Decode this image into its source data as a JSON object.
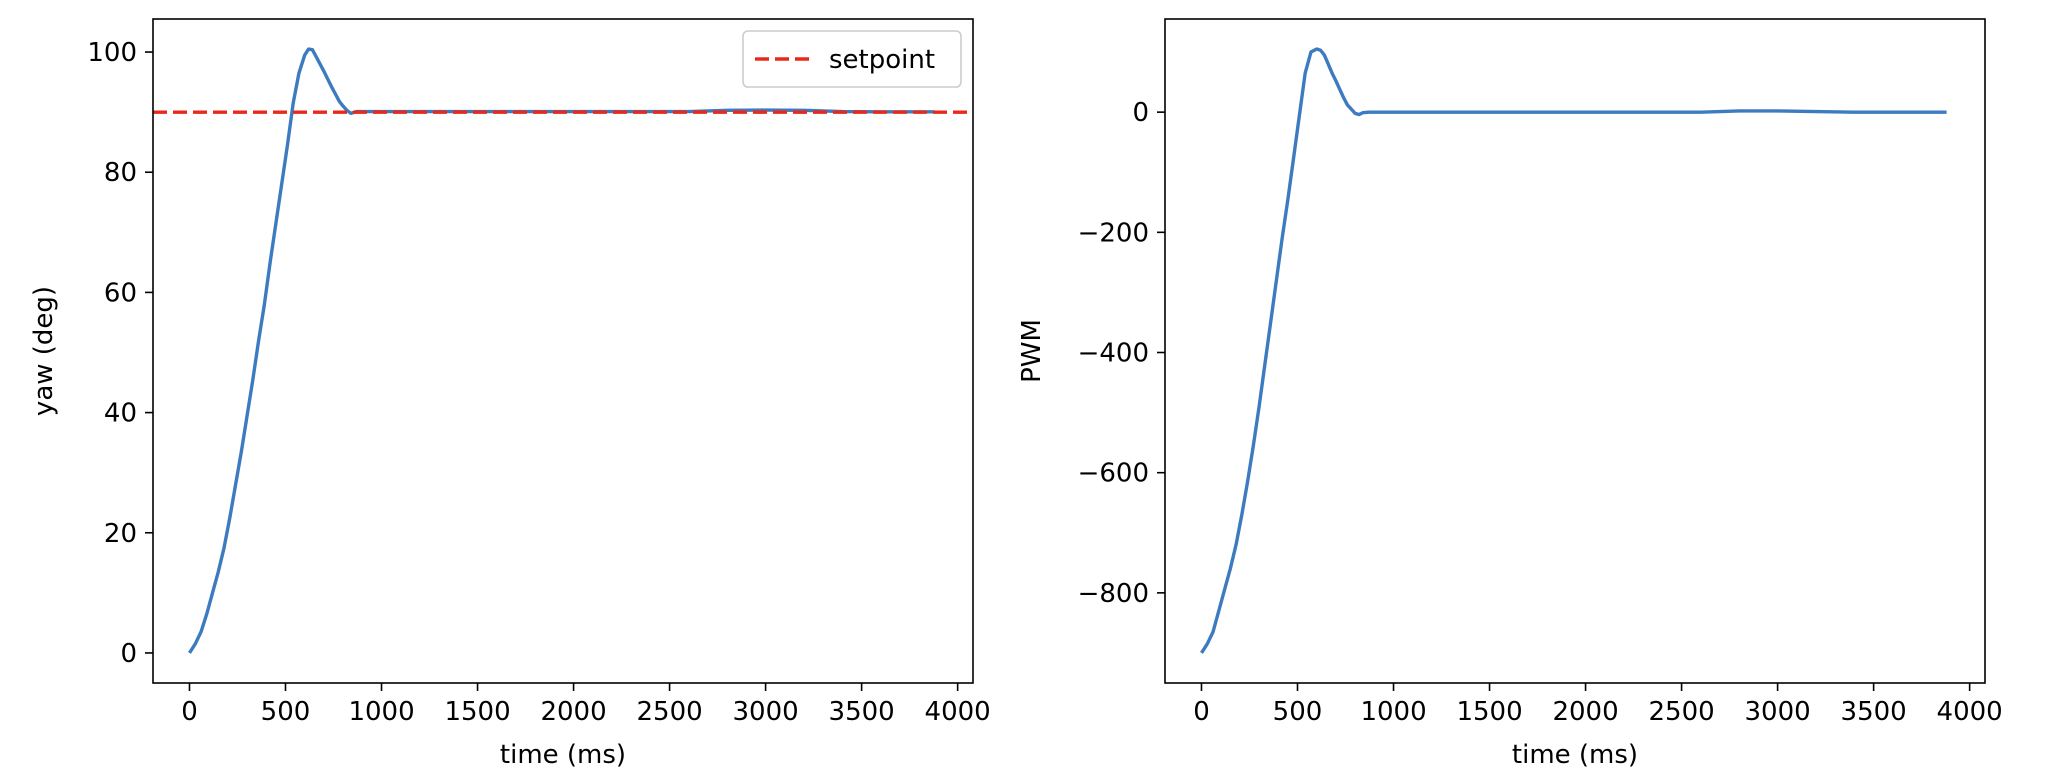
{
  "chart_data": [
    {
      "type": "line",
      "title": "",
      "xlabel": "time (ms)",
      "ylabel": "yaw (deg)",
      "xlim": [
        -190,
        4080
      ],
      "ylim": [
        -5,
        105.5
      ],
      "xticks": [
        0,
        500,
        1000,
        1500,
        2000,
        2500,
        3000,
        3500,
        4000
      ],
      "xtick_labels": [
        "0",
        "500",
        "1000",
        "1500",
        "2000",
        "2500",
        "3000",
        "3500",
        "4000"
      ],
      "yticks": [
        0,
        20,
        40,
        60,
        80,
        100
      ],
      "ytick_labels": [
        "0",
        "20",
        "40",
        "60",
        "80",
        "100"
      ],
      "grid": false,
      "legend": {
        "location": "upper right",
        "entries": [
          "setpoint"
        ]
      },
      "series": [
        {
          "name": "",
          "color": "#3d7bc0",
          "style": "solid",
          "x": [
            0,
            30,
            60,
            90,
            120,
            150,
            180,
            210,
            240,
            270,
            300,
            330,
            360,
            390,
            420,
            450,
            480,
            510,
            540,
            570,
            600,
            620,
            640,
            660,
            680,
            700,
            720,
            740,
            760,
            780,
            800,
            820,
            840,
            870,
            900,
            1000,
            1200,
            1400,
            1600,
            1800,
            2000,
            2200,
            2400,
            2600,
            2800,
            3000,
            3200,
            3400,
            3600,
            3800,
            3880
          ],
          "y": [
            0,
            1.5,
            3.5,
            6.5,
            10,
            13.5,
            17.5,
            22.5,
            28,
            33.5,
            39.5,
            45.5,
            52,
            58,
            65,
            71.5,
            78,
            84.5,
            91.5,
            96.5,
            99.5,
            100.5,
            100.4,
            99.2,
            98,
            96.8,
            95.5,
            94.2,
            93,
            91.8,
            91,
            90.3,
            89.8,
            90.1,
            90.1,
            90.1,
            90.1,
            90.1,
            90.1,
            90.1,
            90.1,
            90.1,
            90.1,
            90.1,
            90.3,
            90.35,
            90.3,
            90.1,
            90.05,
            90.05,
            90.05
          ]
        },
        {
          "name": "setpoint",
          "color": "#e8281b",
          "style": "dashed",
          "x": [
            -190,
            4080
          ],
          "y": [
            90,
            90
          ]
        }
      ]
    },
    {
      "type": "line",
      "title": "",
      "xlabel": "time (ms)",
      "ylabel": "PWM",
      "xlim": [
        -190,
        4080
      ],
      "ylim": [
        -950,
        155
      ],
      "xticks": [
        0,
        500,
        1000,
        1500,
        2000,
        2500,
        3000,
        3500,
        4000
      ],
      "xtick_labels": [
        "0",
        "500",
        "1000",
        "1500",
        "2000",
        "2500",
        "3000",
        "3500",
        "4000"
      ],
      "yticks": [
        -800,
        -600,
        -400,
        -200,
        0
      ],
      "ytick_labels": [
        "−800",
        "−600",
        "−400",
        "−200",
        "0"
      ],
      "grid": false,
      "series": [
        {
          "name": "",
          "color": "#3d7bc0",
          "style": "solid",
          "x": [
            0,
            30,
            60,
            90,
            120,
            150,
            180,
            210,
            240,
            270,
            300,
            330,
            360,
            390,
            420,
            450,
            480,
            510,
            540,
            570,
            600,
            620,
            640,
            660,
            680,
            700,
            720,
            740,
            760,
            780,
            800,
            820,
            840,
            870,
            900,
            1000,
            1200,
            1400,
            1600,
            1800,
            2000,
            2200,
            2400,
            2600,
            2800,
            3000,
            3200,
            3400,
            3600,
            3800,
            3880
          ],
          "y": [
            -900,
            -885,
            -865,
            -830,
            -795,
            -760,
            -720,
            -670,
            -615,
            -555,
            -490,
            -420,
            -350,
            -280,
            -210,
            -145,
            -75,
            -5,
            65,
            100,
            105,
            103,
            95,
            80,
            65,
            52,
            38,
            24,
            12,
            5,
            -2,
            -4,
            -1,
            0,
            0,
            0,
            0,
            0,
            0,
            0,
            0,
            0,
            0,
            0,
            2,
            2,
            1,
            0,
            0,
            0,
            0
          ]
        }
      ]
    }
  ]
}
